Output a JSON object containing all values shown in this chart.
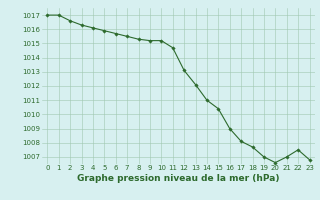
{
  "x": [
    0,
    1,
    2,
    3,
    4,
    5,
    6,
    7,
    8,
    9,
    10,
    11,
    12,
    13,
    14,
    15,
    16,
    17,
    18,
    19,
    20,
    21,
    22,
    23
  ],
  "y": [
    1017.0,
    1017.0,
    1016.6,
    1016.3,
    1016.1,
    1015.9,
    1015.7,
    1015.5,
    1015.3,
    1015.2,
    1015.2,
    1014.7,
    1013.1,
    1012.1,
    1011.0,
    1010.4,
    1009.0,
    1008.1,
    1007.7,
    1007.0,
    1006.6,
    1007.0,
    1007.5,
    1006.8
  ],
  "line_color": "#2d6a2d",
  "marker": "D",
  "marker_size": 1.8,
  "bg_color": "#d7f0f0",
  "grid_color": "#a0c8b0",
  "xlabel_label": "Graphe pression niveau de la mer (hPa)",
  "ylim_min": 1006.5,
  "ylim_max": 1017.5,
  "xlim_min": -0.5,
  "xlim_max": 23.5,
  "yticks": [
    1007,
    1008,
    1009,
    1010,
    1011,
    1012,
    1013,
    1014,
    1015,
    1016,
    1017
  ],
  "xticks": [
    0,
    1,
    2,
    3,
    4,
    5,
    6,
    7,
    8,
    9,
    10,
    11,
    12,
    13,
    14,
    15,
    16,
    17,
    18,
    19,
    20,
    21,
    22,
    23
  ],
  "tick_fontsize": 5.0,
  "xlabel_fontsize": 6.5
}
